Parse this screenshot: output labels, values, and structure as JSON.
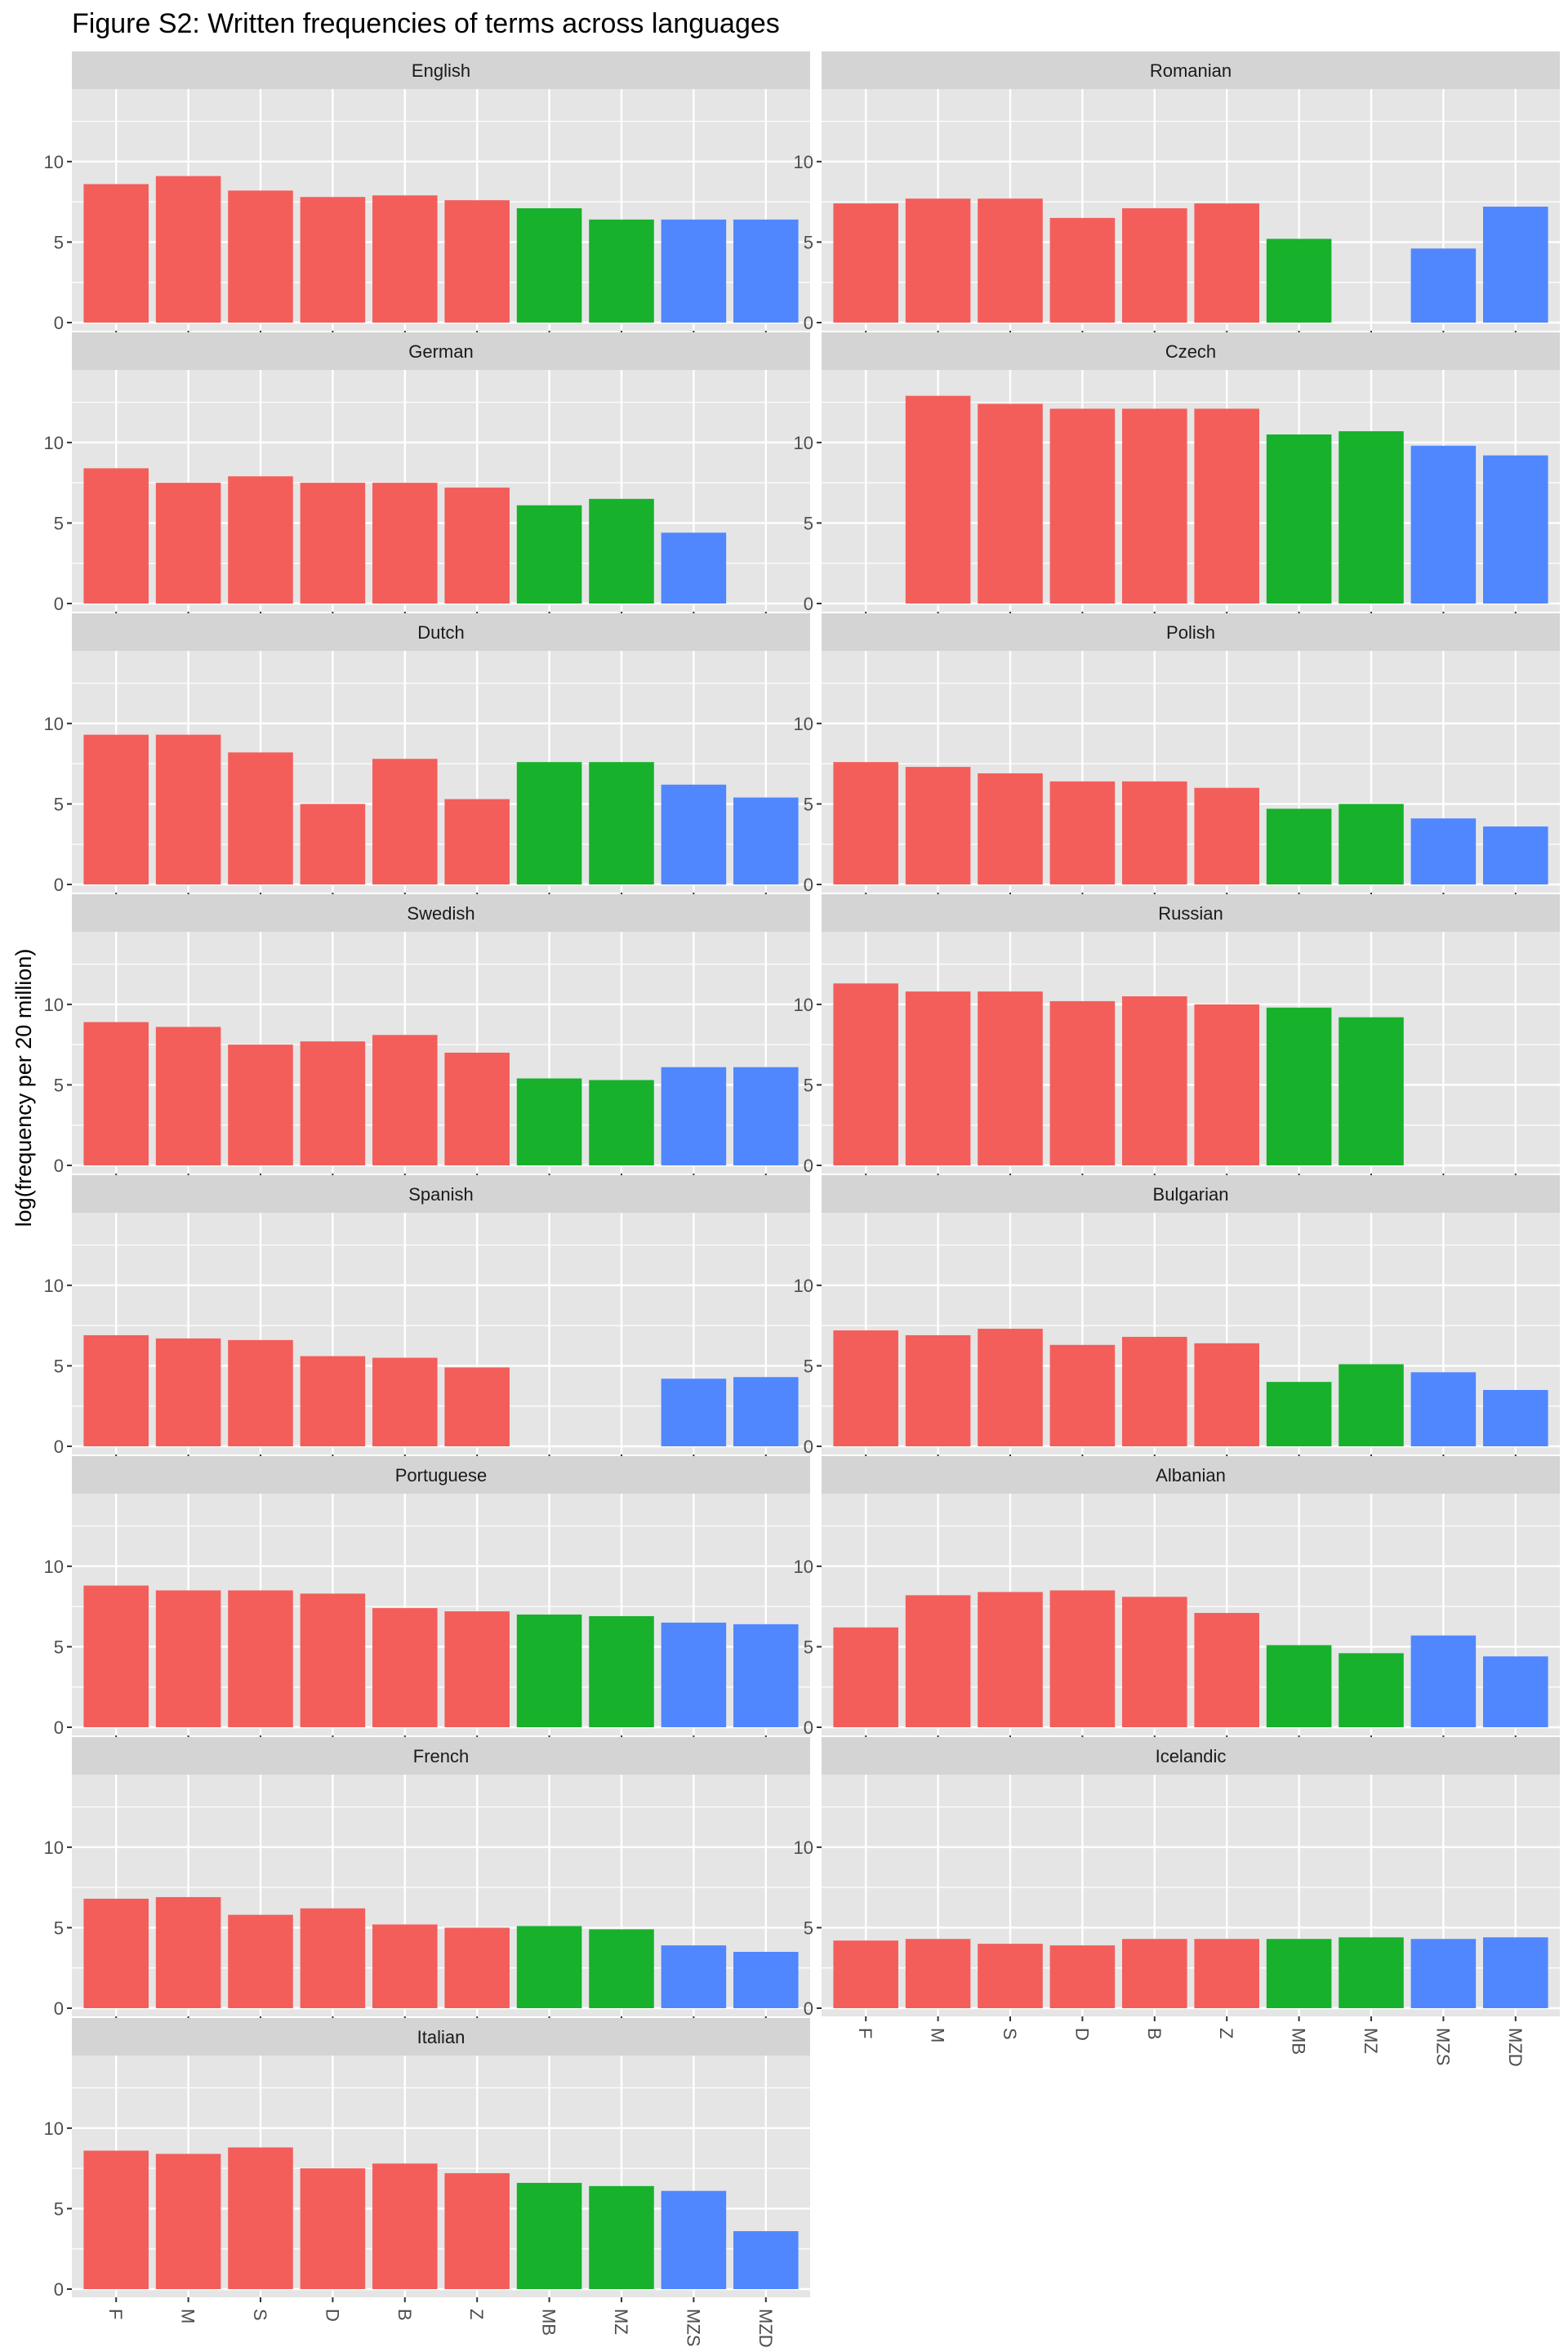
{
  "title": "Figure S2: Written frequencies of terms across languages",
  "colors": {
    "panel_bg": "#e5e5e5",
    "strip_bg": "#d4d4d4",
    "grid": "#ffffff",
    "tick": "#333333",
    "red": "#F35E5A",
    "green": "#17B12B",
    "blue": "#5087FF"
  },
  "chart_data": {
    "type": "bar",
    "ylabel": "log(frequency per 20 million)",
    "xlabel": "",
    "ylim": [
      0,
      14
    ],
    "yticks": [
      0,
      5,
      10
    ],
    "categories": [
      "F",
      "M",
      "S",
      "D",
      "B",
      "Z",
      "MB",
      "MZ",
      "MZS",
      "MZD"
    ],
    "category_colors": [
      "red",
      "red",
      "red",
      "red",
      "red",
      "red",
      "green",
      "green",
      "blue",
      "blue"
    ],
    "legend": "none",
    "grid": true,
    "facets": [
      {
        "name": "English",
        "values": [
          8.6,
          9.1,
          8.2,
          7.8,
          7.9,
          7.6,
          7.1,
          6.4,
          6.4,
          6.4
        ]
      },
      {
        "name": "Romanian",
        "values": [
          7.4,
          7.7,
          7.7,
          6.5,
          7.1,
          7.4,
          5.2,
          null,
          4.6,
          7.2
        ]
      },
      {
        "name": "German",
        "values": [
          8.4,
          7.5,
          7.9,
          7.5,
          7.5,
          7.2,
          6.1,
          6.5,
          4.4,
          null
        ]
      },
      {
        "name": "Czech",
        "values": [
          null,
          12.9,
          12.4,
          12.1,
          12.1,
          12.1,
          10.5,
          10.7,
          9.8,
          9.2
        ]
      },
      {
        "name": "Dutch",
        "values": [
          9.3,
          9.3,
          8.2,
          5.0,
          7.8,
          5.3,
          7.6,
          7.6,
          6.2,
          5.4
        ]
      },
      {
        "name": "Polish",
        "values": [
          7.6,
          7.3,
          6.9,
          6.4,
          6.4,
          6.0,
          4.7,
          5.0,
          4.1,
          3.6
        ]
      },
      {
        "name": "Swedish",
        "values": [
          8.9,
          8.6,
          7.5,
          7.7,
          8.1,
          7.0,
          5.4,
          5.3,
          6.1,
          6.1
        ]
      },
      {
        "name": "Russian",
        "values": [
          11.3,
          10.8,
          10.8,
          10.2,
          10.5,
          10.0,
          9.8,
          9.2,
          null,
          null
        ]
      },
      {
        "name": "Spanish",
        "values": [
          6.9,
          6.7,
          6.6,
          5.6,
          5.5,
          4.9,
          null,
          null,
          4.2,
          4.3
        ]
      },
      {
        "name": "Bulgarian",
        "values": [
          7.2,
          6.9,
          7.3,
          6.3,
          6.8,
          6.4,
          4.0,
          5.1,
          4.6,
          3.5
        ]
      },
      {
        "name": "Portuguese",
        "values": [
          8.8,
          8.5,
          8.5,
          8.3,
          7.4,
          7.2,
          7.0,
          6.9,
          6.5,
          6.4
        ]
      },
      {
        "name": "Albanian",
        "values": [
          6.2,
          8.2,
          8.4,
          8.5,
          8.1,
          7.1,
          5.1,
          4.6,
          5.7,
          4.4
        ]
      },
      {
        "name": "French",
        "values": [
          6.8,
          6.9,
          5.8,
          6.2,
          5.2,
          5.0,
          5.1,
          4.9,
          3.9,
          3.5
        ]
      },
      {
        "name": "Icelandic",
        "values": [
          4.2,
          4.3,
          4.0,
          3.9,
          4.3,
          4.3,
          4.3,
          4.4,
          4.3,
          4.4
        ]
      },
      {
        "name": "Italian",
        "values": [
          8.6,
          8.4,
          8.8,
          7.5,
          7.8,
          7.2,
          6.6,
          6.4,
          6.1,
          3.6
        ]
      }
    ]
  }
}
